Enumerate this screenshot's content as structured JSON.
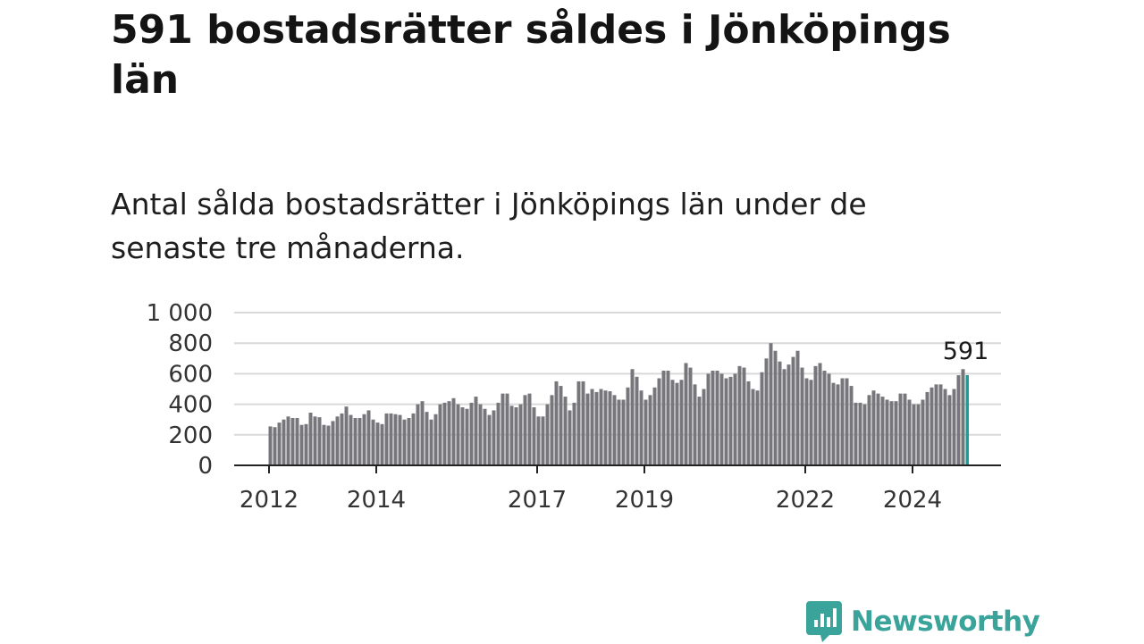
{
  "title": "591 bostadsrätter såldes i Jönköpings län",
  "subtitle": "Antal sålda bostadsrätter i Jönköpings län under de senaste tre månaderna.",
  "brand": {
    "name": "Newsworthy"
  },
  "colors": {
    "bars": "#77767b",
    "highlight": "#1a9e95",
    "grid": "#d9d9d9",
    "axis": "#222222",
    "brand": "#3aa39a"
  },
  "chart_data": {
    "type": "bar",
    "title": "",
    "xlabel": "",
    "ylabel": "",
    "ylim": [
      0,
      1000
    ],
    "yticks": [
      0,
      200,
      400,
      600,
      800,
      1000
    ],
    "ytick_labels": [
      "0",
      "200",
      "400",
      "600",
      "800",
      "1 000"
    ],
    "x_start": "2012-01",
    "xtick_labels": [
      {
        "label": "2012",
        "at": "2012-01"
      },
      {
        "label": "2014",
        "at": "2014-01"
      },
      {
        "label": "2017",
        "at": "2017-01"
      },
      {
        "label": "2019",
        "at": "2019-01"
      },
      {
        "label": "2022",
        "at": "2022-01"
      },
      {
        "label": "2024",
        "at": "2024-01"
      }
    ],
    "grid": true,
    "highlight_last": true,
    "last_label": "591",
    "values": [
      255,
      250,
      280,
      300,
      320,
      310,
      310,
      265,
      270,
      345,
      320,
      315,
      265,
      260,
      290,
      320,
      340,
      385,
      330,
      310,
      310,
      335,
      360,
      300,
      280,
      270,
      340,
      340,
      335,
      330,
      300,
      310,
      340,
      400,
      420,
      350,
      300,
      335,
      400,
      410,
      420,
      440,
      400,
      380,
      370,
      410,
      450,
      400,
      370,
      330,
      360,
      410,
      470,
      470,
      390,
      380,
      400,
      460,
      470,
      380,
      320,
      320,
      400,
      460,
      550,
      520,
      450,
      360,
      410,
      550,
      550,
      470,
      500,
      480,
      500,
      490,
      485,
      460,
      430,
      430,
      510,
      630,
      580,
      490,
      430,
      460,
      510,
      570,
      620,
      620,
      560,
      540,
      560,
      670,
      640,
      530,
      450,
      500,
      600,
      620,
      620,
      600,
      570,
      580,
      600,
      650,
      640,
      550,
      500,
      490,
      610,
      700,
      800,
      750,
      680,
      630,
      660,
      710,
      750,
      640,
      570,
      560,
      650,
      670,
      620,
      600,
      540,
      530,
      570,
      570,
      520,
      410,
      410,
      400,
      460,
      490,
      470,
      450,
      430,
      420,
      420,
      470,
      470,
      430,
      400,
      400,
      430,
      480,
      510,
      530,
      530,
      500,
      460,
      500,
      590,
      630,
      591
    ]
  }
}
